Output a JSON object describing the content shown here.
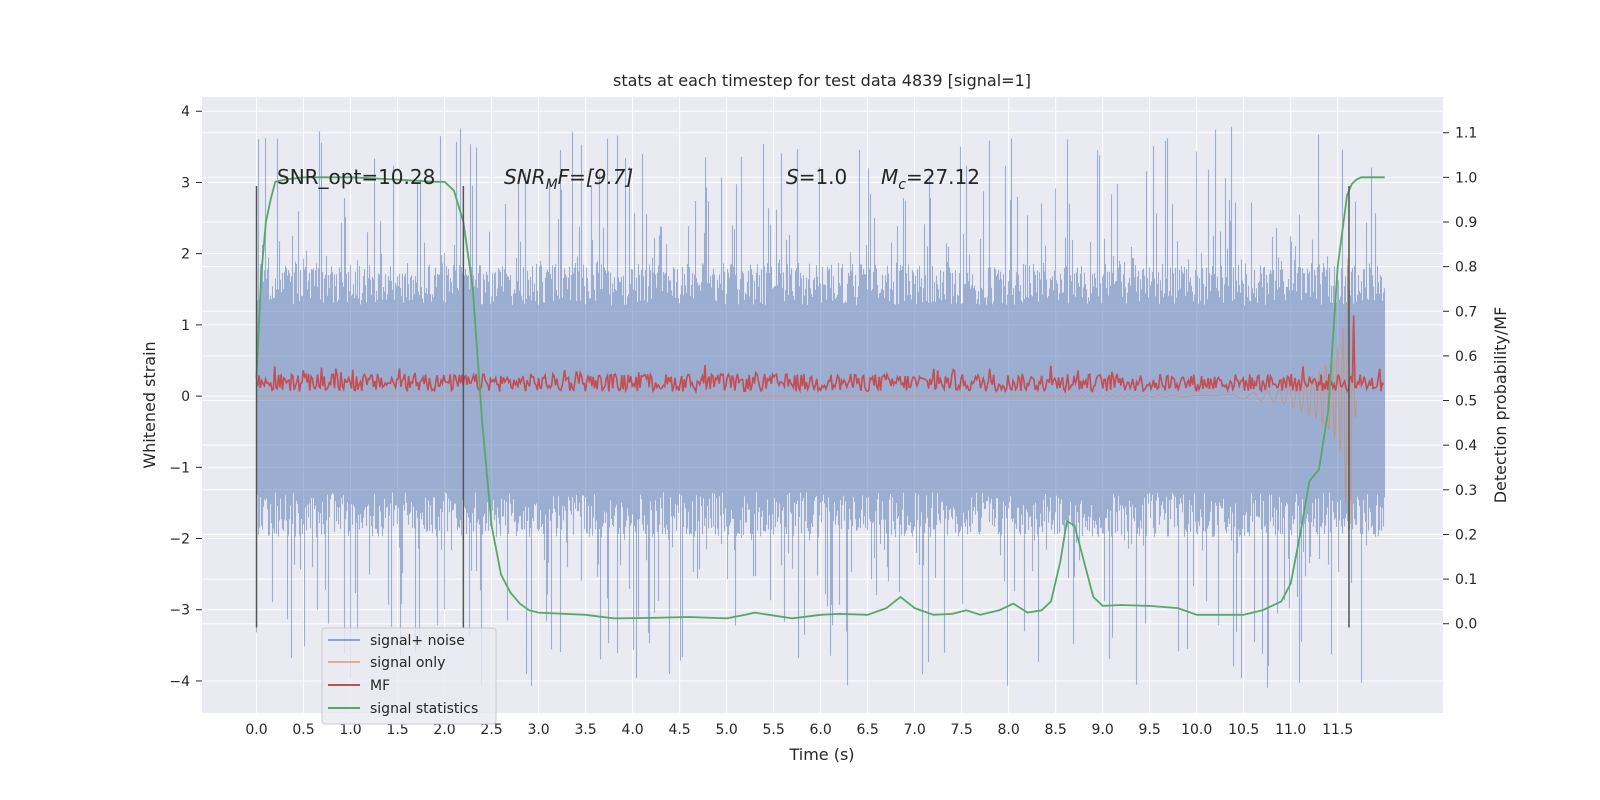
{
  "chart_data": {
    "type": "line",
    "title": "stats at each timestep for test data 4839 [signal=1]",
    "xlabel": "Time (s)",
    "ylabel": "Whitened strain",
    "y2label": "Detection probability/MF",
    "xlim": [
      -0.58,
      12.62
    ],
    "ylim": [
      -4.45,
      4.2
    ],
    "y2lim": [
      -0.2,
      1.18
    ],
    "grid": true,
    "xticks": [
      "0.0",
      "0.5",
      "1.0",
      "1.5",
      "2.0",
      "2.5",
      "3.0",
      "3.5",
      "4.0",
      "4.5",
      "5.0",
      "5.5",
      "6.0",
      "6.5",
      "7.0",
      "7.5",
      "8.0",
      "8.5",
      "9.0",
      "9.5",
      "10.0",
      "10.5",
      "11.0",
      "11.5"
    ],
    "yticks": [
      "4",
      "3",
      "2",
      "1",
      "0",
      "−1",
      "−2",
      "−3",
      "−4"
    ],
    "y2ticks": [
      "1.1",
      "1.0",
      "0.9",
      "0.8",
      "0.7",
      "0.6",
      "0.5",
      "0.4",
      "0.3",
      "0.2",
      "0.1",
      "0.0"
    ],
    "annotations": {
      "snr_opt": "SNR_opt=10.28",
      "snr_mf_main": "SNR",
      "snr_mf_sub": "M",
      "snr_mf_rest": "F=[9.7]",
      "s_main": "S",
      "s_rest": "=1.0",
      "mc_main": "M",
      "mc_sub": "c",
      "mc_rest": "=27.12"
    },
    "vertical_markers_x": [
      0.0,
      2.2,
      11.62
    ],
    "legend": {
      "placement": "lower-left",
      "entries": [
        "signal+ noise",
        "signal only",
        "MF",
        "signal statistics"
      ]
    },
    "colors": {
      "signal_noise": "#4c72b0",
      "signal_only": "#dd8452",
      "mf": "#c44e52",
      "signal_statistics": "#55a868",
      "plot_bg": "#eaeaf2",
      "grid": "#ffffff"
    },
    "series": [
      {
        "name": "signal+ noise",
        "x_range": [
          0.0,
          12.0
        ],
        "envelope_pos_typical": 1.7,
        "envelope_pos_peak": 3.8,
        "envelope_neg_typical": -1.8,
        "envelope_neg_peak": -4.1
      },
      {
        "name": "signal only",
        "x_range": [
          0.0,
          11.7
        ],
        "x": [
          10.2,
          10.6,
          10.9,
          11.1,
          11.3,
          11.45,
          11.55,
          11.62,
          11.7
        ],
        "amplitude": [
          0.01,
          0.05,
          0.1,
          0.2,
          0.35,
          0.55,
          0.85,
          2.3,
          0.0
        ]
      },
      {
        "name": "MF",
        "x_range": [
          0.0,
          12.0
        ],
        "baseline": 0.54,
        "jitter": 0.02,
        "spike_x": 11.67,
        "spike_value": 0.69
      },
      {
        "name": "signal statistics",
        "x": [
          0.0,
          0.05,
          0.1,
          0.15,
          0.2,
          0.3,
          0.5,
          1.0,
          1.5,
          1.9,
          2.0,
          2.1,
          2.2,
          2.3,
          2.4,
          2.5,
          2.6,
          2.7,
          2.8,
          2.9,
          3.0,
          3.2,
          3.5,
          3.8,
          4.2,
          4.6,
          5.0,
          5.2,
          5.3,
          5.45,
          5.7,
          6.0,
          6.2,
          6.5,
          6.7,
          6.85,
          7.0,
          7.2,
          7.4,
          7.55,
          7.7,
          7.9,
          8.05,
          8.2,
          8.35,
          8.45,
          8.55,
          8.62,
          8.7,
          8.8,
          8.9,
          9.0,
          9.2,
          9.5,
          9.8,
          10.0,
          10.2,
          10.5,
          10.7,
          10.9,
          11.0,
          11.1,
          11.2,
          11.3,
          11.4,
          11.5,
          11.55,
          11.6,
          11.65,
          11.7,
          11.75,
          11.8,
          11.9,
          12.0
        ],
        "values": [
          0.55,
          0.78,
          0.9,
          0.95,
          0.99,
          0.995,
          1.0,
          1.0,
          0.995,
          0.99,
          0.99,
          0.97,
          0.9,
          0.75,
          0.45,
          0.22,
          0.11,
          0.07,
          0.045,
          0.03,
          0.025,
          0.023,
          0.02,
          0.012,
          0.013,
          0.015,
          0.012,
          0.02,
          0.025,
          0.02,
          0.012,
          0.02,
          0.022,
          0.02,
          0.035,
          0.06,
          0.035,
          0.02,
          0.022,
          0.03,
          0.02,
          0.03,
          0.045,
          0.025,
          0.03,
          0.05,
          0.14,
          0.23,
          0.22,
          0.14,
          0.06,
          0.04,
          0.042,
          0.04,
          0.035,
          0.02,
          0.02,
          0.02,
          0.03,
          0.05,
          0.09,
          0.2,
          0.32,
          0.345,
          0.48,
          0.8,
          0.88,
          0.96,
          0.985,
          0.995,
          1.0,
          1.0,
          1.0,
          1.0
        ]
      }
    ]
  }
}
